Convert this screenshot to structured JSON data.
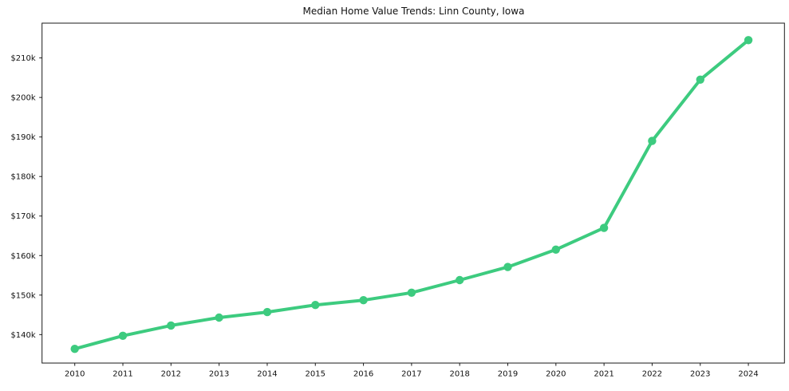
{
  "figure": {
    "background": "#ffffff",
    "text_color": "#111111",
    "spine_color": "#1a1a1a"
  },
  "chart_data": {
    "type": "line",
    "title": "Median Home Value Trends: Linn County, Iowa",
    "xlabel": "",
    "ylabel": "",
    "grid": false,
    "legend": false,
    "series_name": "Median Home Value",
    "line_color": "#3dcb7f",
    "marker": "circle",
    "x": [
      2010,
      2011,
      2012,
      2013,
      2014,
      2015,
      2016,
      2017,
      2018,
      2019,
      2020,
      2021,
      2022,
      2023,
      2024
    ],
    "values": [
      136400,
      139700,
      142300,
      144300,
      145700,
      147500,
      148700,
      150600,
      153800,
      157100,
      161500,
      167000,
      189000,
      204500,
      214500
    ],
    "xlim": [
      2009.32,
      2024.75
    ],
    "ylim": [
      132800,
      218800
    ],
    "xticks": {
      "values": [
        2010,
        2011,
        2012,
        2013,
        2014,
        2015,
        2016,
        2017,
        2018,
        2019,
        2020,
        2021,
        2022,
        2023,
        2024
      ],
      "labels": [
        "2010",
        "2011",
        "2012",
        "2013",
        "2014",
        "2015",
        "2016",
        "2017",
        "2018",
        "2019",
        "2020",
        "2021",
        "2022",
        "2023",
        "2024"
      ]
    },
    "yticks": {
      "values": [
        140000,
        150000,
        160000,
        170000,
        180000,
        190000,
        200000,
        210000
      ],
      "labels": [
        "$140k",
        "$150k",
        "$160k",
        "$170k",
        "$180k",
        "$190k",
        "$200k",
        "$210k"
      ]
    }
  }
}
